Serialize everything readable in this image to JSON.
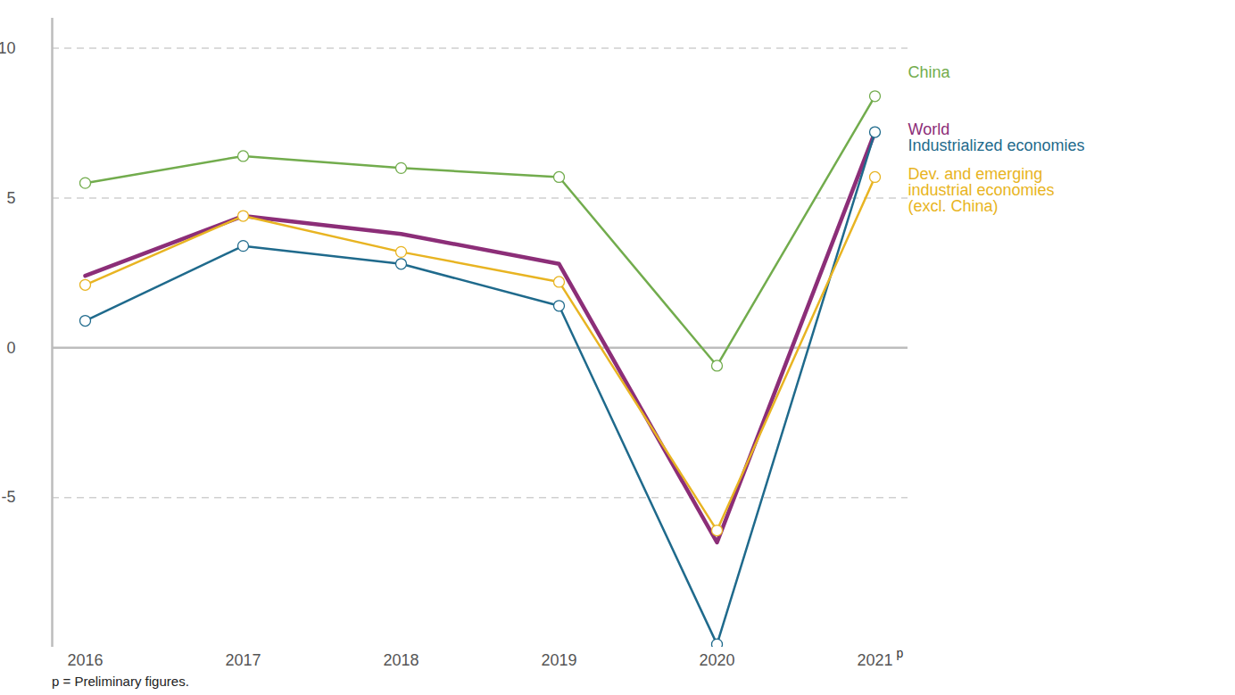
{
  "chart_data": {
    "type": "line",
    "x": [
      2016,
      2017,
      2018,
      2019,
      2020,
      2021
    ],
    "xlim": [
      2016,
      2021
    ],
    "xticks": [
      2016,
      2017,
      2018,
      2019,
      2020,
      2021
    ],
    "ylim": [
      -10,
      11
    ],
    "yticks": [
      -5,
      0,
      5,
      10
    ],
    "grid": true,
    "preliminary_mark": "p",
    "caption": "p = Preliminary figures.",
    "series": [
      {
        "name": "China",
        "color": "#72ac4d",
        "marker": "circle",
        "values": [
          5.5,
          6.4,
          6.0,
          5.7,
          -0.6,
          8.4
        ]
      },
      {
        "name": "World",
        "color": "#8c2e78",
        "marker": "none",
        "values": [
          2.4,
          4.4,
          3.8,
          2.8,
          -6.5,
          7.2
        ]
      },
      {
        "name": "Industrialized economies",
        "color": "#1f6a8c",
        "marker": "circle",
        "values": [
          0.9,
          3.4,
          2.8,
          1.4,
          -9.9,
          7.2
        ]
      },
      {
        "name": "Dev. and emerging\nindustrial economies\n(excl. China)",
        "color": "#e8b422",
        "marker": "circle",
        "values": [
          2.1,
          4.4,
          3.2,
          2.2,
          -6.1,
          5.7
        ]
      }
    ]
  }
}
